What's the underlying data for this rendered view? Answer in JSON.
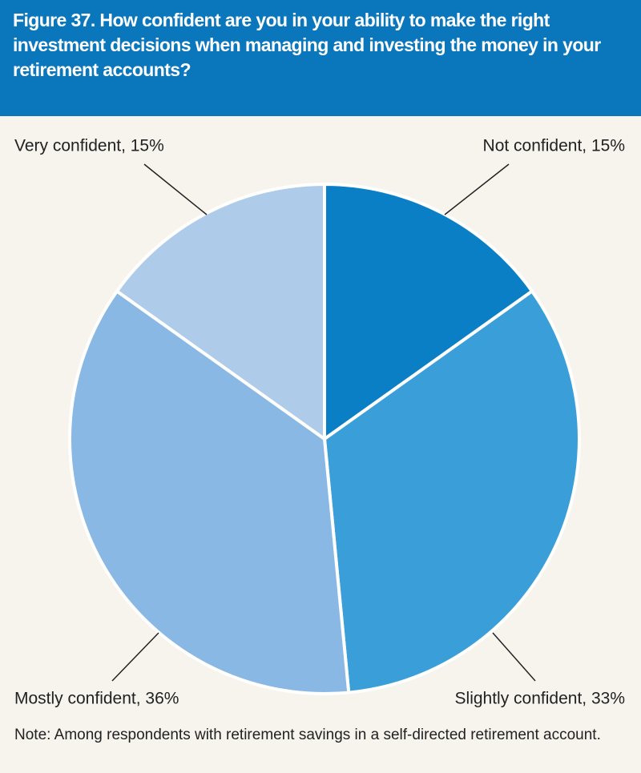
{
  "chart_data": {
    "type": "pie",
    "title": "Figure 37. How confident are you in your ability to make the right investment decisions when managing and investing the money in your retirement accounts?",
    "categories": [
      "Not confident, 15%",
      "Slightly confident, 33%",
      "Mostly confident, 36%",
      "Very confident, 15%"
    ],
    "values": [
      15,
      33,
      36,
      15
    ],
    "colors": [
      "#0a7fc6",
      "#3a9ed9",
      "#88b8e3",
      "#aecbea"
    ],
    "note": "Note: Among respondents with retirement savings in a self-directed retirement account."
  }
}
